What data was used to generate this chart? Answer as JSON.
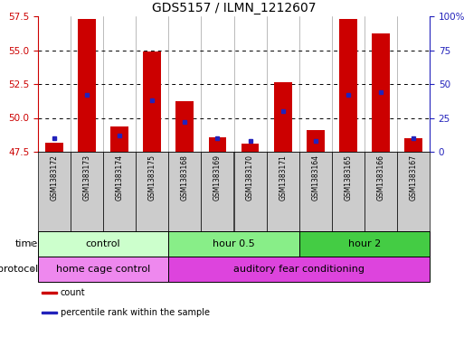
{
  "title": "GDS5157 / ILMN_1212607",
  "samples": [
    "GSM1383172",
    "GSM1383173",
    "GSM1383174",
    "GSM1383175",
    "GSM1383168",
    "GSM1383169",
    "GSM1383170",
    "GSM1383171",
    "GSM1383164",
    "GSM1383165",
    "GSM1383166",
    "GSM1383167"
  ],
  "count_values": [
    48.15,
    57.3,
    49.35,
    54.9,
    51.2,
    48.55,
    48.1,
    52.6,
    49.1,
    57.3,
    56.2,
    48.5
  ],
  "percentile_values": [
    10,
    42,
    12,
    38,
    22,
    10,
    8,
    30,
    8,
    42,
    44,
    10
  ],
  "y_min": 47.5,
  "y_max": 57.5,
  "y_ticks_left": [
    47.5,
    50.0,
    52.5,
    55.0,
    57.5
  ],
  "y_ticks_right": [
    0,
    25,
    50,
    75,
    100
  ],
  "bar_color": "#cc0000",
  "dot_color": "#2222bb",
  "bar_width": 0.55,
  "groups": [
    {
      "label": "control",
      "start": 0,
      "end": 4,
      "color": "#ccffcc"
    },
    {
      "label": "hour 0.5",
      "start": 4,
      "end": 8,
      "color": "#88ee88"
    },
    {
      "label": "hour 2",
      "start": 8,
      "end": 12,
      "color": "#44cc44"
    }
  ],
  "protocols": [
    {
      "label": "home cage control",
      "start": 0,
      "end": 4,
      "color": "#ee88ee"
    },
    {
      "label": "auditory fear conditioning",
      "start": 4,
      "end": 12,
      "color": "#dd44dd"
    }
  ],
  "legend_items": [
    {
      "label": "count",
      "color": "#cc0000"
    },
    {
      "label": "percentile rank within the sample",
      "color": "#2222bb"
    }
  ],
  "left_axis_color": "#cc0000",
  "right_axis_color": "#2222bb",
  "sample_cell_color": "#cccccc",
  "title_fontsize": 10,
  "tick_fontsize": 7.5,
  "sample_fontsize": 5.5,
  "legend_fontsize": 7,
  "row_fontsize": 8
}
